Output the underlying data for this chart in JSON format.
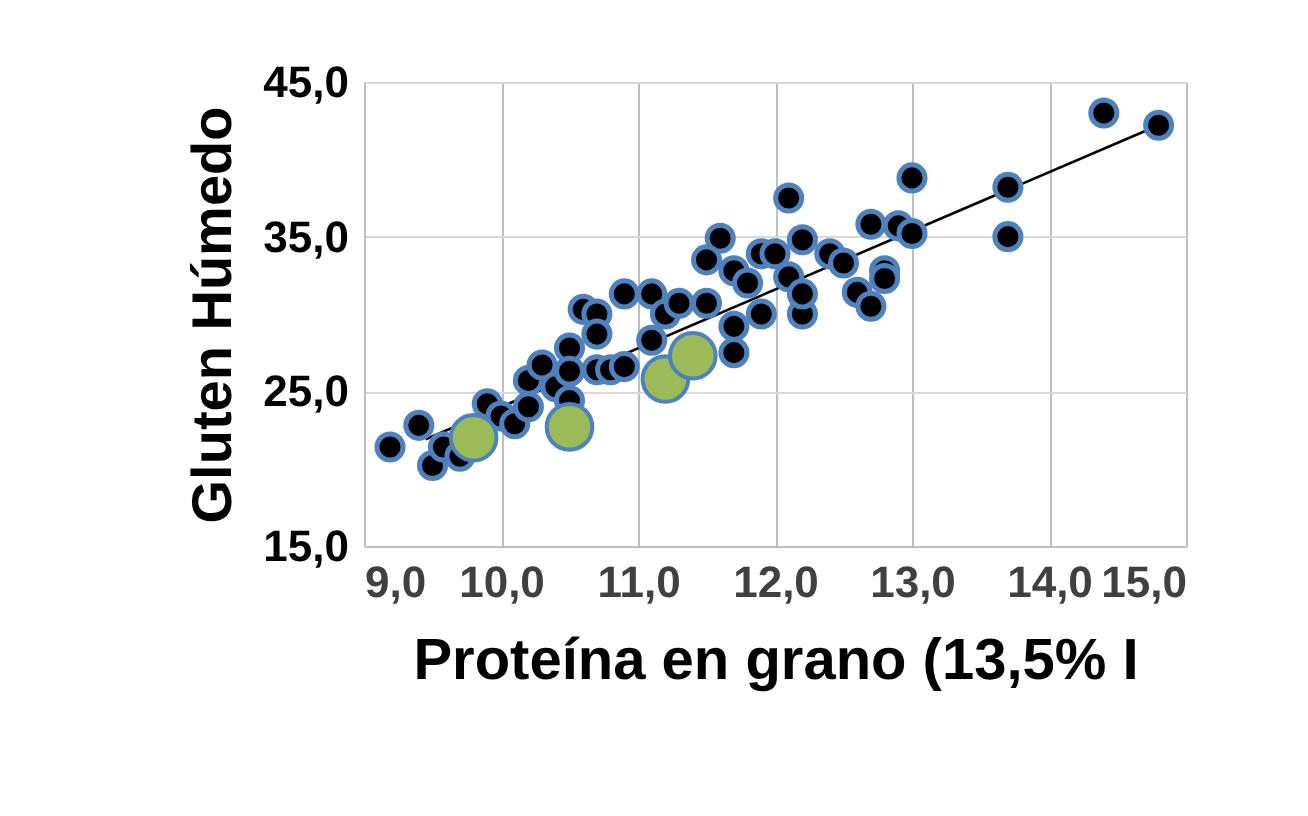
{
  "chart_data": {
    "type": "scatter",
    "xlabel": "Proteína en grano (13,5% I",
    "ylabel": "Gluten Húmedo",
    "xlim": [
      9,
      15
    ],
    "ylim": [
      15,
      45
    ],
    "xticks": [
      {
        "value": 9,
        "label": "9,0"
      },
      {
        "value": 10,
        "label": "10,0"
      },
      {
        "value": 11,
        "label": "11,0"
      },
      {
        "value": 12,
        "label": "12,0"
      },
      {
        "value": 13,
        "label": "13,0"
      },
      {
        "value": 14,
        "label": "14,0"
      },
      {
        "value": 15,
        "label": "15,0"
      }
    ],
    "yticks": [
      {
        "value": 15,
        "label": "15,0"
      },
      {
        "value": 25,
        "label": "25,0"
      },
      {
        "value": 35,
        "label": "35,0"
      },
      {
        "value": 45,
        "label": "45,0"
      }
    ],
    "grid": true,
    "marker": "circle",
    "series": [
      {
        "type": "line",
        "marker": "none",
        "color": "#000000",
        "x": [
          9.45,
          14.8
        ],
        "values": [
          21.9,
          42.2
        ]
      },
      {
        "color": "#000000",
        "x": [
          9.19,
          9.4,
          9.5,
          9.58,
          9.7,
          9.9,
          10.0,
          10.1,
          10.2,
          10.2,
          10.3,
          10.4,
          10.5,
          10.5,
          10.5,
          10.6,
          10.7,
          10.7,
          10.7,
          10.8,
          10.9,
          10.9,
          11.1,
          11.1,
          11.2,
          11.3,
          11.5,
          11.6,
          11.5,
          11.7,
          11.7,
          11.7,
          11.8,
          11.9,
          11.9,
          12.0,
          12.1,
          12.2,
          12.2,
          12.1,
          12.2,
          12.4,
          12.5,
          12.6,
          12.7,
          12.7,
          12.8,
          12.8,
          12.9,
          13.0,
          13.0,
          13.7,
          13.7,
          14.4,
          14.8
        ],
        "values": [
          21.4,
          22.8,
          20.2,
          21.4,
          20.8,
          24.2,
          23.4,
          22.9,
          25.7,
          24.0,
          26.7,
          25.3,
          27.8,
          24.4,
          26.3,
          30.3,
          30.0,
          28.7,
          26.4,
          26.4,
          31.3,
          26.6,
          31.3,
          28.3,
          30.0,
          30.7,
          30.7,
          34.9,
          33.5,
          32.8,
          27.5,
          29.2,
          32.0,
          33.9,
          30.0,
          33.9,
          37.5,
          34.8,
          30.0,
          32.4,
          31.3,
          33.9,
          33.3,
          31.4,
          35.8,
          30.5,
          32.8,
          32.3,
          35.7,
          38.8,
          35.2,
          38.2,
          35.0,
          43.0,
          42.2
        ]
      },
      {
        "color": "#9bbb59",
        "x": [
          9.8,
          10.5,
          11.2,
          11.4
        ],
        "values": [
          22.0,
          22.7,
          25.8,
          27.3
        ]
      }
    ]
  }
}
